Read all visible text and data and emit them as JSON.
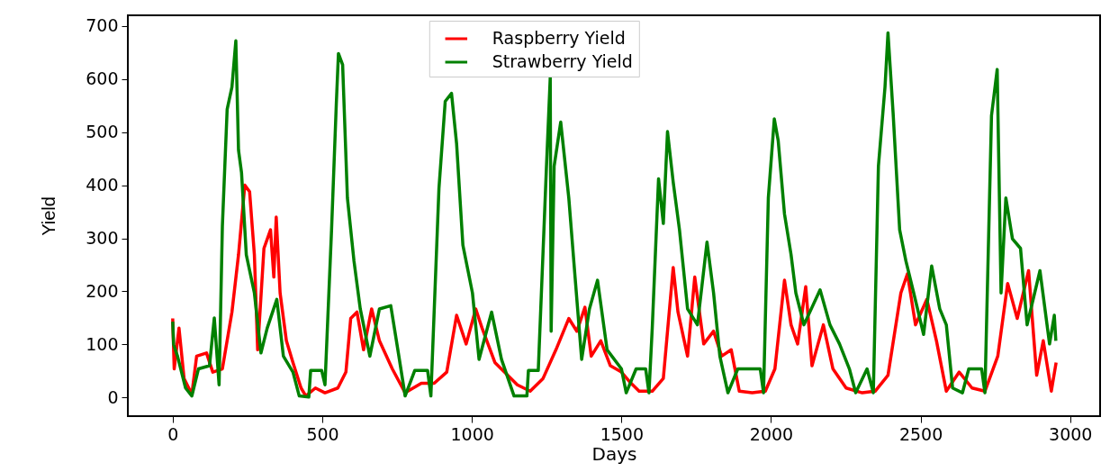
{
  "chart_data": {
    "type": "line",
    "xlabel": "Days",
    "ylabel": "Yield",
    "xlim": [
      -150,
      3100
    ],
    "ylim": [
      -35,
      720
    ],
    "xticks": [
      0,
      500,
      1000,
      1500,
      2000,
      2500,
      3000
    ],
    "yticks": [
      0,
      100,
      200,
      300,
      400,
      500,
      600,
      700
    ],
    "grid": false,
    "legend": "top",
    "line_style": "solid",
    "marker": "none",
    "series": [
      {
        "name": "Raspberry Yield",
        "color": "#ff0000",
        "x": [
          0,
          5,
          21,
          38,
          64,
          80,
          113,
          134,
          166,
          198,
          220,
          241,
          257,
          273,
          284,
          305,
          327,
          338,
          346,
          359,
          380,
          402,
          429,
          445,
          477,
          509,
          552,
          579,
          595,
          616,
          638,
          665,
          691,
          734,
          777,
          831,
          874,
          916,
          949,
          981,
          1013,
          1034,
          1077,
          1109,
          1152,
          1195,
          1238,
          1281,
          1324,
          1351,
          1378,
          1399,
          1431,
          1463,
          1500,
          1527,
          1559,
          1603,
          1640,
          1673,
          1689,
          1721,
          1745,
          1775,
          1808,
          1835,
          1867,
          1894,
          1937,
          1981,
          2013,
          2045,
          2067,
          2089,
          2116,
          2137,
          2175,
          2207,
          2251,
          2305,
          2348,
          2391,
          2434,
          2456,
          2483,
          2521,
          2553,
          2586,
          2629,
          2672,
          2715,
          2758,
          2791,
          2823,
          2861,
          2888,
          2910,
          2937,
          2953
        ],
        "values": [
          149,
          54,
          131,
          36,
          6,
          78,
          84,
          48,
          54,
          161,
          269,
          400,
          388,
          269,
          90,
          281,
          316,
          227,
          340,
          197,
          107,
          66,
          18,
          3,
          18,
          9,
          18,
          48,
          149,
          161,
          90,
          167,
          107,
          54,
          9,
          27,
          27,
          48,
          155,
          101,
          167,
          131,
          66,
          48,
          24,
          12,
          36,
          90,
          149,
          125,
          170,
          78,
          107,
          60,
          48,
          30,
          12,
          12,
          36,
          245,
          161,
          78,
          227,
          101,
          125,
          78,
          90,
          12,
          9,
          12,
          54,
          221,
          137,
          101,
          209,
          60,
          137,
          54,
          18,
          9,
          12,
          42,
          197,
          233,
          137,
          185,
          107,
          12,
          48,
          18,
          12,
          78,
          215,
          149,
          239,
          42,
          107,
          12,
          66
        ]
      },
      {
        "name": "Strawberry Yield",
        "color": "#008000",
        "x": [
          0,
          3,
          16,
          43,
          64,
          86,
          123,
          139,
          155,
          166,
          182,
          198,
          211,
          220,
          230,
          246,
          273,
          295,
          316,
          348,
          370,
          402,
          423,
          455,
          461,
          498,
          509,
          531,
          547,
          554,
          568,
          584,
          606,
          627,
          659,
          691,
          729,
          756,
          777,
          809,
          852,
          863,
          890,
          911,
          932,
          949,
          970,
          1002,
          1024,
          1066,
          1099,
          1141,
          1184,
          1189,
          1222,
          1238,
          1249,
          1262,
          1265,
          1275,
          1297,
          1324,
          1345,
          1367,
          1393,
          1420,
          1452,
          1500,
          1516,
          1549,
          1581,
          1592,
          1603,
          1624,
          1640,
          1654,
          1673,
          1694,
          1721,
          1754,
          1786,
          1808,
          1829,
          1856,
          1889,
          1916,
          1964,
          1975,
          1991,
          2011,
          2024,
          2045,
          2067,
          2083,
          2110,
          2164,
          2197,
          2229,
          2262,
          2283,
          2321,
          2342,
          2359,
          2381,
          2391,
          2408,
          2430,
          2451,
          2477,
          2510,
          2537,
          2564,
          2586,
          2607,
          2640,
          2661,
          2704,
          2715,
          2737,
          2756,
          2769,
          2785,
          2807,
          2834,
          2856,
          2899,
          2931,
          2947,
          2952
        ],
        "values": [
          143,
          100,
          78,
          18,
          3,
          54,
          60,
          150,
          24,
          322,
          543,
          585,
          672,
          466,
          424,
          269,
          197,
          84,
          131,
          185,
          78,
          48,
          3,
          1,
          51,
          51,
          24,
          316,
          555,
          648,
          627,
          376,
          257,
          167,
          78,
          167,
          173,
          78,
          3,
          51,
          51,
          3,
          394,
          558,
          573,
          478,
          287,
          197,
          72,
          161,
          72,
          3,
          3,
          51,
          51,
          275,
          430,
          603,
          125,
          436,
          519,
          376,
          227,
          72,
          167,
          221,
          90,
          54,
          9,
          54,
          54,
          9,
          131,
          412,
          328,
          501,
          406,
          316,
          167,
          137,
          293,
          197,
          78,
          9,
          54,
          54,
          54,
          9,
          376,
          525,
          484,
          346,
          269,
          197,
          137,
          203,
          137,
          101,
          54,
          9,
          54,
          9,
          436,
          585,
          687,
          537,
          316,
          257,
          197,
          119,
          248,
          167,
          137,
          18,
          9,
          54,
          54,
          9,
          531,
          618,
          197,
          376,
          299,
          281,
          137,
          239,
          101,
          155,
          107
        ]
      }
    ]
  }
}
